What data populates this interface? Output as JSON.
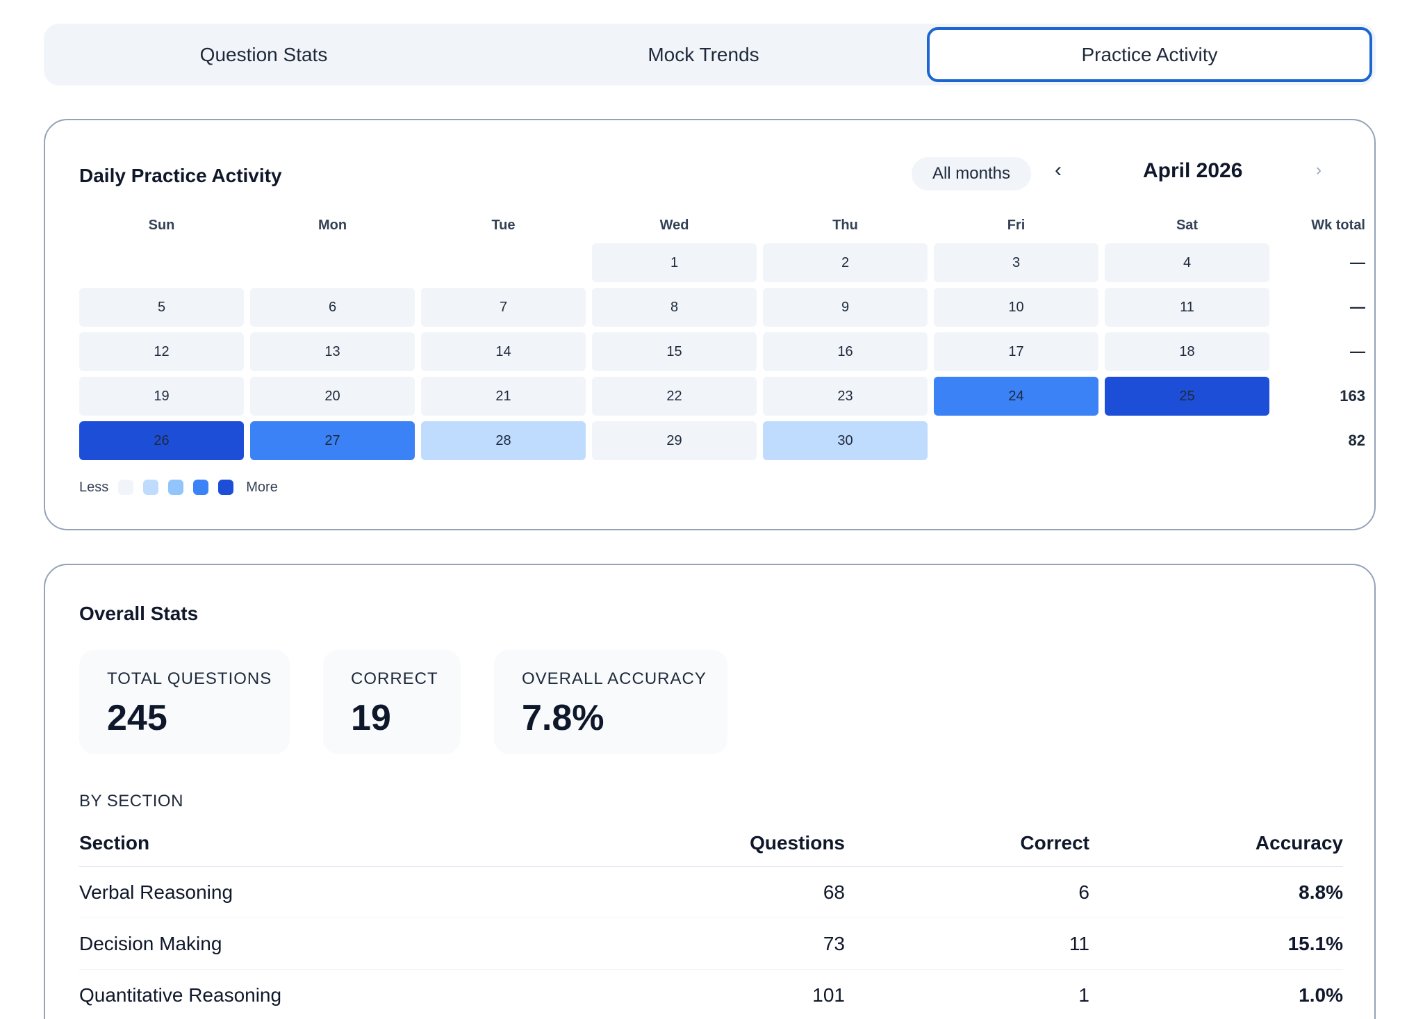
{
  "tabs": [
    {
      "label": "Question Stats",
      "active": false
    },
    {
      "label": "Mock Trends",
      "active": false
    },
    {
      "label": "Practice Activity",
      "active": true
    }
  ],
  "activity": {
    "title": "Daily Practice Activity",
    "all_months_label": "All months",
    "prev_icon": "‹",
    "next_icon": "›",
    "month_label": "April 2026",
    "weekdays": [
      "Sun",
      "Mon",
      "Tue",
      "Wed",
      "Thu",
      "Fri",
      "Sat"
    ],
    "wk_total_header": "Wk total",
    "weeks": [
      {
        "days": [
          null,
          null,
          null,
          {
            "d": "1",
            "level": 0
          },
          {
            "d": "2",
            "level": 0
          },
          {
            "d": "3",
            "level": 0
          },
          {
            "d": "4",
            "level": 0
          }
        ],
        "total": "—"
      },
      {
        "days": [
          {
            "d": "5",
            "level": 0
          },
          {
            "d": "6",
            "level": 0
          },
          {
            "d": "7",
            "level": 0
          },
          {
            "d": "8",
            "level": 0
          },
          {
            "d": "9",
            "level": 0
          },
          {
            "d": "10",
            "level": 0
          },
          {
            "d": "11",
            "level": 0
          }
        ],
        "total": "—"
      },
      {
        "days": [
          {
            "d": "12",
            "level": 0
          },
          {
            "d": "13",
            "level": 0
          },
          {
            "d": "14",
            "level": 0
          },
          {
            "d": "15",
            "level": 0
          },
          {
            "d": "16",
            "level": 0
          },
          {
            "d": "17",
            "level": 0
          },
          {
            "d": "18",
            "level": 0
          }
        ],
        "total": "—"
      },
      {
        "days": [
          {
            "d": "19",
            "level": 0
          },
          {
            "d": "20",
            "level": 0
          },
          {
            "d": "21",
            "level": 0
          },
          {
            "d": "22",
            "level": 0
          },
          {
            "d": "23",
            "level": 0
          },
          {
            "d": "24",
            "level": 3
          },
          {
            "d": "25",
            "level": 4
          }
        ],
        "total": "163"
      },
      {
        "days": [
          {
            "d": "26",
            "level": 4
          },
          {
            "d": "27",
            "level": 3
          },
          {
            "d": "28",
            "level": 1
          },
          {
            "d": "29",
            "level": 0
          },
          {
            "d": "30",
            "level": 1
          },
          null,
          null
        ],
        "total": "82"
      }
    ],
    "level_colors": [
      "#f1f5f9",
      "#bfdbfe",
      "#93c5fd",
      "#3b82f6",
      "#1d4ed8"
    ],
    "legend": {
      "less_label": "Less",
      "more_label": "More"
    }
  },
  "stats": {
    "title": "Overall Stats",
    "cards": [
      {
        "label": "TOTAL QUESTIONS",
        "value": "245"
      },
      {
        "label": "CORRECT",
        "value": "19"
      },
      {
        "label": "OVERALL ACCURACY",
        "value": "7.8%"
      }
    ],
    "by_section_label": "BY SECTION",
    "table": {
      "headers": [
        "Section",
        "Questions",
        "Correct",
        "Accuracy"
      ],
      "rows": [
        {
          "section": "Verbal Reasoning",
          "questions": "68",
          "correct": "6",
          "accuracy": "8.8%"
        },
        {
          "section": "Decision Making",
          "questions": "73",
          "correct": "11",
          "accuracy": "15.1%"
        },
        {
          "section": "Quantitative Reasoning",
          "questions": "101",
          "correct": "1",
          "accuracy": "1.0%"
        }
      ]
    }
  }
}
